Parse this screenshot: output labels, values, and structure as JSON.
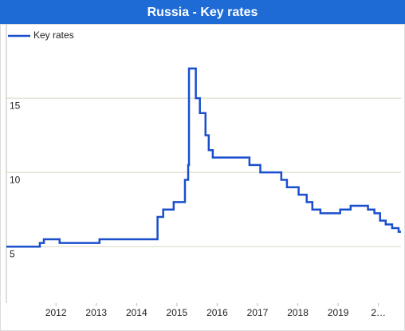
{
  "chart_data": {
    "type": "line",
    "title": "Russia - Key rates",
    "step": true,
    "x": [
      2010.77,
      2011.6,
      2011.7,
      2012.09,
      2013.08,
      2014.52,
      2014.66,
      2014.92,
      2015.2,
      2015.28,
      2015.3,
      2015.47,
      2015.57,
      2015.71,
      2015.79,
      2015.89,
      2016.8,
      2017.07,
      2017.59,
      2017.73,
      2018.02,
      2018.22,
      2018.36,
      2018.56,
      2019.05,
      2019.31,
      2019.74,
      2019.9,
      2020.04,
      2020.18,
      2020.34,
      2020.5,
      2020.56
    ],
    "series": [
      {
        "name": "Key rates",
        "color": "#1a4fcc",
        "values": [
          5,
          5.25,
          5.5,
          5.25,
          5.5,
          7,
          7.5,
          8,
          9.5,
          10.5,
          17,
          15,
          14,
          12.5,
          11.5,
          11,
          10.5,
          10,
          9.5,
          9,
          8.5,
          8,
          7.5,
          7.25,
          7.5,
          7.75,
          7.5,
          7.25,
          6.75,
          6.5,
          6.25,
          6,
          6
        ]
      }
    ],
    "xlim": [
      2010.77,
      2020.56
    ],
    "xticks": [
      2012,
      2013,
      2014,
      2015,
      2016,
      2017,
      2018,
      2019,
      {
        "value": 2020,
        "label": "2…"
      }
    ],
    "ylim": [
      1.2,
      20
    ],
    "yticks": [
      5,
      10,
      15
    ],
    "grid": true,
    "legend": "top-left"
  }
}
